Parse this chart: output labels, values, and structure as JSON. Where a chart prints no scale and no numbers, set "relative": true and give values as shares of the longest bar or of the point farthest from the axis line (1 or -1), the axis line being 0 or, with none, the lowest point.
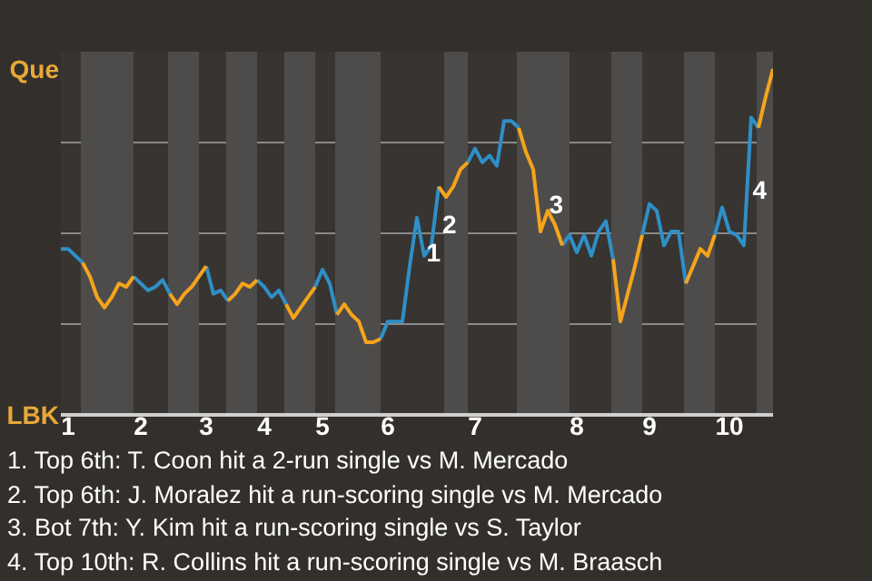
{
  "chart_data": {
    "type": "line",
    "relative": true,
    "categories": [
      null,
      "1",
      null,
      null,
      null,
      null,
      null,
      null,
      null,
      null,
      null,
      "2",
      null,
      null,
      null,
      null,
      null,
      null,
      null,
      null,
      "3",
      null,
      null,
      null,
      null,
      null,
      null,
      null,
      "4",
      null,
      null,
      null,
      null,
      null,
      null,
      null,
      "5",
      null,
      null,
      null,
      null,
      null,
      null,
      null,
      null,
      "6",
      null,
      null,
      null,
      null,
      null,
      null,
      null,
      null,
      null,
      null,
      null,
      "7",
      null,
      null,
      null,
      null,
      null,
      null,
      null,
      null,
      null,
      null,
      null,
      null,
      null,
      "8",
      null,
      null,
      null,
      null,
      null,
      null,
      null,
      null,
      null,
      "9",
      null,
      null,
      null,
      null,
      null,
      null,
      null,
      null,
      null,
      null,
      "10",
      null,
      null,
      null,
      null,
      null,
      null
    ],
    "grid": "y",
    "marker": "none",
    "line_style": "solid",
    "series": [
      {
        "color": "#2f8fc6",
        "values": [
          0.48,
          0.48,
          0.46,
          0.44,
          null,
          null,
          null,
          null,
          null,
          null,
          0.4,
          0.38,
          0.36,
          0.37,
          0.39,
          0.35,
          null,
          null,
          null,
          null,
          0.43,
          0.35,
          0.36,
          0.33,
          null,
          null,
          null,
          0.39,
          0.37,
          0.34,
          0.36,
          0.32,
          null,
          null,
          null,
          0.37,
          0.42,
          0.38,
          0.29,
          null,
          null,
          null,
          null,
          null,
          0.22,
          0.27,
          0.27,
          0.27,
          0.43,
          0.57,
          0.46,
          0.49,
          0.66,
          null,
          null,
          null,
          0.73,
          0.77,
          0.73,
          0.75,
          0.72,
          0.85,
          0.85,
          0.83,
          null,
          null,
          null,
          null,
          null,
          0.49,
          0.52,
          0.47,
          0.52,
          0.46,
          0.53,
          0.56,
          0.45,
          null,
          null,
          null,
          0.52,
          0.61,
          0.59,
          0.49,
          0.53,
          0.53,
          0.38,
          null,
          null,
          null,
          0.52,
          0.6,
          0.53,
          0.52,
          0.49,
          0.86,
          0.83,
          null,
          null
        ]
      },
      {
        "color": "#f5a41c",
        "values": [
          null,
          null,
          null,
          0.44,
          0.4,
          0.34,
          0.31,
          0.34,
          0.38,
          0.37,
          0.4,
          null,
          null,
          null,
          null,
          0.35,
          0.32,
          0.35,
          0.37,
          0.4,
          0.43,
          null,
          null,
          0.33,
          0.35,
          0.38,
          0.37,
          0.39,
          null,
          null,
          null,
          0.32,
          0.28,
          0.31,
          0.34,
          0.37,
          null,
          null,
          0.29,
          0.32,
          0.29,
          0.27,
          0.21,
          0.21,
          0.22,
          null,
          null,
          null,
          null,
          null,
          null,
          null,
          0.66,
          0.63,
          0.66,
          0.71,
          0.73,
          null,
          null,
          null,
          null,
          null,
          null,
          0.83,
          0.76,
          0.71,
          0.53,
          0.59,
          0.55,
          0.49,
          null,
          null,
          null,
          null,
          null,
          null,
          0.45,
          0.27,
          0.35,
          0.43,
          0.52,
          null,
          null,
          null,
          null,
          null,
          0.38,
          0.43,
          0.48,
          0.46,
          0.52,
          null,
          null,
          null,
          null,
          null,
          0.83,
          0.92,
          1
        ]
      }
    ],
    "annotations": [
      "1",
      "2",
      "3",
      "4",
      "Que",
      "LBK",
      "1. Top 6th: T. Coon hit a 2-run single vs M. Mercado",
      "2. Top 6th: J. Moralez hit a run-scoring single vs M. Mercado",
      "3. Bot 7th: Y. Kim hit a run-scoring single vs S. Taylor",
      "4. Top 10th: R. Collins hit a run-scoring single vs M. Braasch"
    ]
  }
}
